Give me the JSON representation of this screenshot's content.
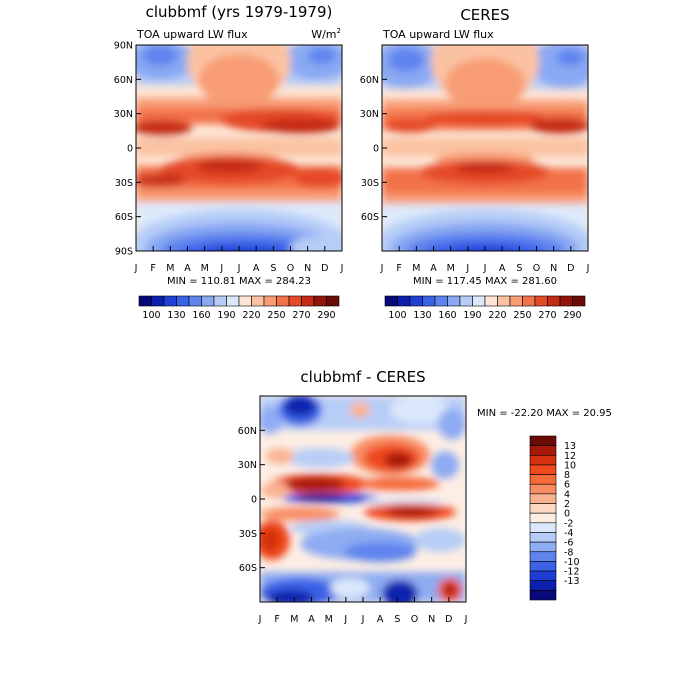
{
  "chart_data": [
    {
      "type": "heatmap",
      "title": "clubbmf (yrs 1979-1979)",
      "subtitle_left": "TOA upward LW flux",
      "subtitle_right": "W/m",
      "subtitle_right_sup": "2",
      "x_ticks": [
        "J",
        "F",
        "M",
        "A",
        "M",
        "J",
        "J",
        "A",
        "S",
        "O",
        "N",
        "D",
        "J"
      ],
      "y_ticks": [
        "90N",
        "60N",
        "30N",
        "0",
        "30S",
        "60S",
        "90S"
      ],
      "stats": "MIN = 110.81 MAX = 284.23",
      "colorbar_labels": [
        "100",
        "130",
        "160",
        "190",
        "220",
        "250",
        "270",
        "290"
      ]
    },
    {
      "type": "heatmap",
      "title": "CERES",
      "subtitle_left": "TOA upward LW flux",
      "y_ticks": [
        "60N",
        "30N",
        "0",
        "30S",
        "60S"
      ],
      "x_ticks": [
        "J",
        "F",
        "M",
        "A",
        "M",
        "J",
        "J",
        "A",
        "S",
        "O",
        "N",
        "D",
        "J"
      ],
      "stats": "MIN = 117.45 MAX = 281.60",
      "colorbar_labels": [
        "100",
        "130",
        "160",
        "190",
        "220",
        "250",
        "270",
        "290"
      ]
    },
    {
      "type": "heatmap",
      "title": "clubbmf - CERES",
      "y_ticks": [
        "60N",
        "30N",
        "0",
        "30S",
        "60S"
      ],
      "x_ticks": [
        "J",
        "F",
        "M",
        "A",
        "M",
        "J",
        "J",
        "A",
        "S",
        "O",
        "N",
        "D",
        "J"
      ],
      "stats": "MIN = -22.20 MAX =  20.95",
      "colorbar_labels": [
        "13",
        "12",
        "10",
        "8",
        "6",
        "4",
        "2",
        "0",
        "-2",
        "-4",
        "-6",
        "-8",
        "-10",
        "-12",
        "-13"
      ]
    }
  ],
  "colors": {
    "abs_scale": [
      "#08087a",
      "#0b1fae",
      "#1f3fd6",
      "#3a62e8",
      "#5f84ef",
      "#8aa9f3",
      "#b6cdf7",
      "#dde9fb",
      "#fde5d6",
      "#fbc2a2",
      "#f89c75",
      "#f2724a",
      "#e54a26",
      "#c62c15",
      "#93150a",
      "#6b0b05"
    ],
    "diff_scale": [
      "#6b0b05",
      "#a8190a",
      "#d63010",
      "#ef4a1c",
      "#f66a3a",
      "#f88d63",
      "#fab291",
      "#fdd9c4",
      "#fdeee4",
      "#dbe8fb",
      "#b7cdf7",
      "#8eacf2",
      "#5f84ee",
      "#3b62e6",
      "#1c3ed6",
      "#0b21ad",
      "#08087a"
    ]
  }
}
